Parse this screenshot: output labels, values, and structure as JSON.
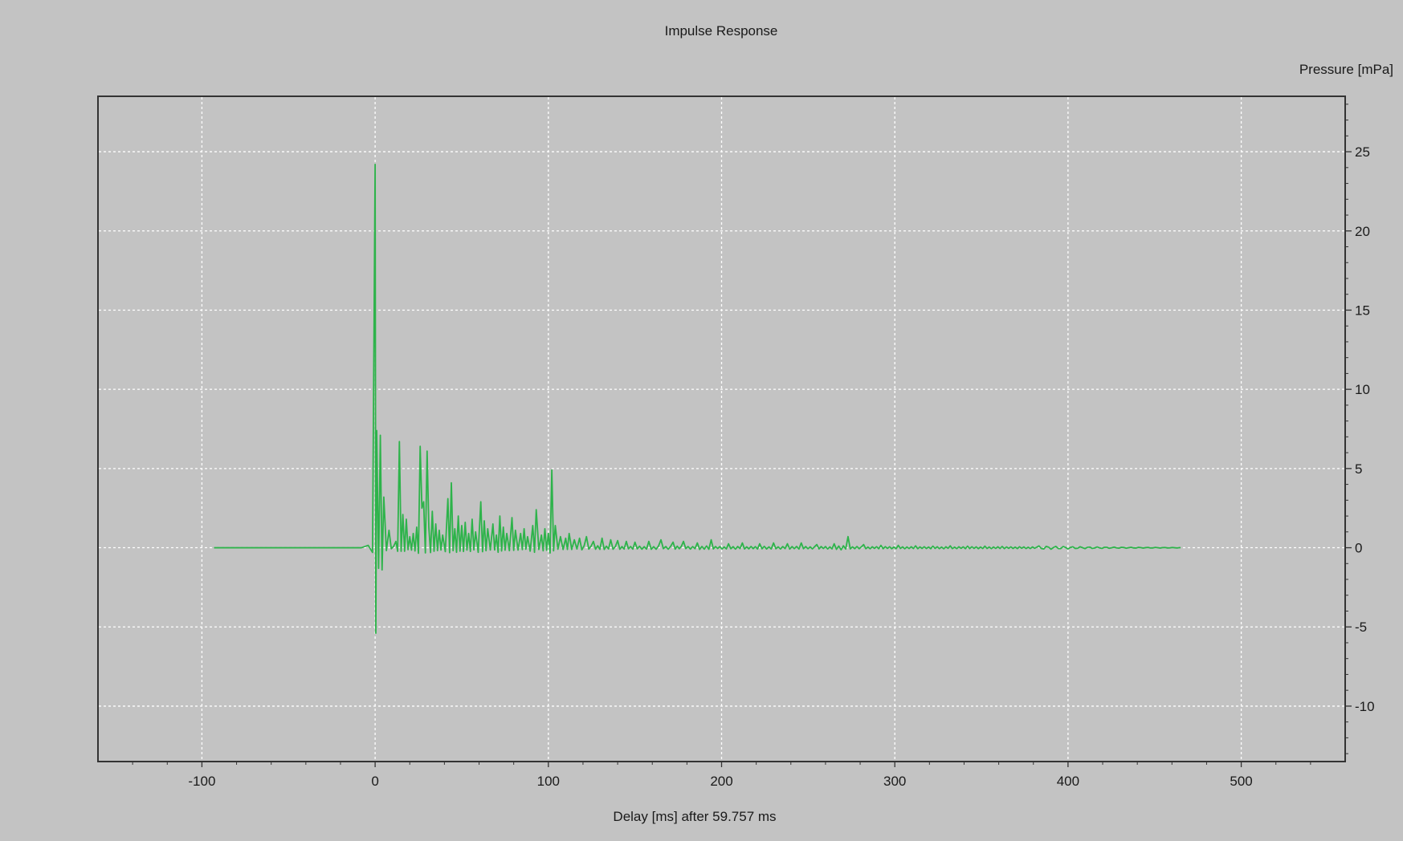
{
  "chart_data": {
    "type": "line",
    "title": "Impulse Response",
    "xlabel": "Delay [ms] after  59.757 ms",
    "ylabel": "Pressure [mPa]",
    "xlim": [
      -160,
      560
    ],
    "ylim": [
      -13.5,
      28.5
    ],
    "x_ticks": [
      -100,
      0,
      100,
      200,
      300,
      400,
      500
    ],
    "y_ticks": [
      -10,
      -5,
      0,
      5,
      10,
      15,
      20,
      25
    ],
    "y_tick_labels": [
      "-10",
      "-5",
      "0",
      "5",
      "10",
      "15",
      "20",
      "25"
    ],
    "grid": true,
    "line_color": "#2db34a",
    "background_color": "#c3c3c3",
    "plot_border_color": "#333333",
    "grid_color": "#ffffff",
    "series": [
      {
        "x_range": [
          -93,
          465
        ],
        "peaks": [
          [
            0,
            24.2
          ],
          [
            0.4,
            -5.4
          ],
          [
            0.9,
            7.4
          ],
          [
            2,
            -1.3
          ],
          [
            3,
            7.1
          ],
          [
            4,
            -1.4
          ],
          [
            5,
            3.2
          ],
          [
            8,
            1.1
          ],
          [
            12,
            0.4
          ],
          [
            14,
            6.7
          ],
          [
            16,
            2.1
          ],
          [
            18,
            1.8
          ],
          [
            20,
            0.7
          ],
          [
            22,
            0.9
          ],
          [
            24,
            1.3
          ],
          [
            26,
            6.4
          ],
          [
            27,
            2.5
          ],
          [
            28,
            2.9
          ],
          [
            30,
            6.1
          ],
          [
            31,
            1.3
          ],
          [
            33,
            2.3
          ],
          [
            35,
            1.5
          ],
          [
            37,
            1.1
          ],
          [
            39,
            0.8
          ],
          [
            42,
            3.1
          ],
          [
            44,
            4.1
          ],
          [
            46,
            1.2
          ],
          [
            48,
            2.0
          ],
          [
            50,
            1.4
          ],
          [
            52,
            1.6
          ],
          [
            54,
            0.9
          ],
          [
            56,
            1.8
          ],
          [
            58,
            1.0
          ],
          [
            61,
            2.9
          ],
          [
            63,
            1.7
          ],
          [
            65,
            1.2
          ],
          [
            68,
            1.5
          ],
          [
            70,
            0.8
          ],
          [
            72,
            2.0
          ],
          [
            74,
            1.3
          ],
          [
            76,
            0.9
          ],
          [
            79,
            1.9
          ],
          [
            81,
            1.1
          ],
          [
            84,
            0.9
          ],
          [
            86,
            1.2
          ],
          [
            88,
            0.7
          ],
          [
            91,
            1.4
          ],
          [
            93,
            2.4
          ],
          [
            96,
            0.8
          ],
          [
            98,
            1.2
          ],
          [
            100,
            0.9
          ],
          [
            102,
            4.9
          ],
          [
            104,
            1.4
          ],
          [
            107,
            0.7
          ],
          [
            110,
            0.6
          ],
          [
            112,
            0.9
          ],
          [
            115,
            0.5
          ],
          [
            118,
            0.6
          ],
          [
            122,
            0.7
          ],
          [
            126,
            0.4
          ],
          [
            131,
            0.6
          ],
          [
            136,
            0.5
          ],
          [
            140,
            0.45
          ],
          [
            145,
            0.4
          ],
          [
            150,
            0.35
          ],
          [
            158,
            0.4
          ],
          [
            165,
            0.5
          ],
          [
            172,
            0.35
          ],
          [
            178,
            0.4
          ],
          [
            186,
            0.3
          ],
          [
            194,
            0.5
          ],
          [
            204,
            0.25
          ],
          [
            212,
            0.3
          ],
          [
            222,
            0.25
          ],
          [
            230,
            0.3
          ],
          [
            238,
            0.25
          ],
          [
            246,
            0.3
          ],
          [
            255,
            0.2
          ],
          [
            265,
            0.25
          ],
          [
            273,
            0.7
          ],
          [
            282,
            0.2
          ],
          [
            292,
            0.15
          ],
          [
            302,
            0.15
          ],
          [
            312,
            0.12
          ],
          [
            322,
            0.1
          ],
          [
            332,
            0.12
          ],
          [
            342,
            0.1
          ],
          [
            352,
            0.1
          ],
          [
            362,
            0.08
          ],
          [
            372,
            0.06
          ],
          [
            382,
            0.04
          ]
        ]
      }
    ]
  }
}
